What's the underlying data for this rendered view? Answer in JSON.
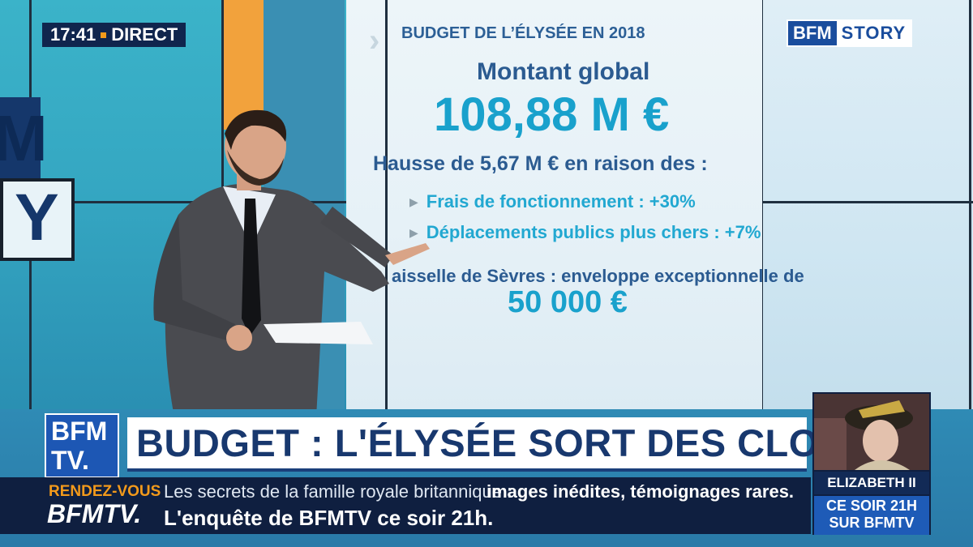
{
  "overlay": {
    "time": "17:41",
    "live": "DIRECT",
    "channel_part1": "BFM",
    "channel_part2": "STORY"
  },
  "screen": {
    "title": "BUDGET DE L’ÉLYSÉE EN 2018",
    "subtitle": "Montant global",
    "amount": "108,88 M €",
    "increase": "Hausse de 5,67 M € en raison des :",
    "bullets": [
      "Frais de fonctionnement : +30%",
      "Déplacements publics plus chers : +7%"
    ],
    "sevres_text": "aisselle de Sèvres : enveloppe exceptionnelle de",
    "sevres_amount": "50 000 €"
  },
  "studio_logo": {
    "letter_top": "M",
    "letter_bottom": "Y"
  },
  "lower_third": {
    "logo_line1": "BFM",
    "logo_line2": "TV.",
    "headline": "BUDGET : L'ÉLYSÉE SORT DES CLOUS",
    "ticker_label_top": "RENDEZ-VOUS",
    "ticker_label_bottom": "BFMTV.",
    "ticker_line1_regular": "Les secrets de la famille royale britannique :",
    "ticker_line1_bold": "images inédites, témoignages rares.",
    "ticker_line2": "L'enquête de BFMTV ce soir 21h."
  },
  "promo": {
    "title": "ELIZABETH II",
    "time": "CE SOIR 21H",
    "channel": "SUR BFMTV"
  },
  "colors": {
    "navy": "#10254d",
    "accent_orange": "#f39a1b",
    "headline_blue": "#18386e",
    "amount_cyan": "#19a1cc"
  }
}
